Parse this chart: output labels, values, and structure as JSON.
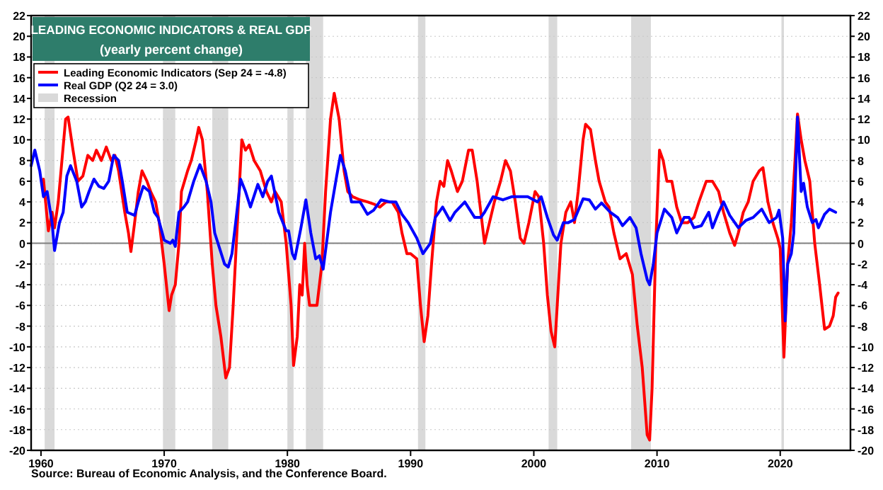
{
  "chart_data": {
    "type": "line",
    "title": "LEADING ECONOMIC INDICATORS & REAL GDP",
    "subtitle": "(yearly percent change)",
    "annotations": [
      "Source: Bureau of Economic Analysis, and the Conference Board."
    ],
    "xlim": [
      1959.2,
      2025.7
    ],
    "xticks": [
      1960,
      1970,
      1980,
      1990,
      2000,
      2010,
      2020
    ],
    "ylim": [
      -20,
      22
    ],
    "yticks": [
      -20,
      -18,
      -16,
      -14,
      -12,
      -10,
      -8,
      -6,
      -4,
      -2,
      0,
      2,
      4,
      6,
      8,
      10,
      12,
      14,
      16,
      18,
      20,
      22
    ],
    "y2lim": [
      -20,
      22
    ],
    "y2ticks": [
      -20,
      -18,
      -16,
      -14,
      -12,
      -10,
      -8,
      -6,
      -4,
      -2,
      0,
      2,
      4,
      6,
      8,
      10,
      12,
      14,
      16,
      18,
      20,
      22
    ],
    "grid": "y",
    "legend": "top left",
    "ref_lines": [
      {
        "axis": "y",
        "value": 0,
        "color": "#808080"
      }
    ],
    "bands": [
      {
        "axis": "x",
        "from": 1960.3,
        "to": 1961.1,
        "label": "Recession",
        "color": "#d9d9d9"
      },
      {
        "axis": "x",
        "from": 1969.9,
        "to": 1970.9,
        "color": "#d9d9d9"
      },
      {
        "axis": "x",
        "from": 1973.9,
        "to": 1975.2,
        "color": "#d9d9d9"
      },
      {
        "axis": "x",
        "from": 1980.0,
        "to": 1980.5,
        "color": "#d9d9d9"
      },
      {
        "axis": "x",
        "from": 1981.5,
        "to": 1982.9,
        "color": "#d9d9d9"
      },
      {
        "axis": "x",
        "from": 1990.6,
        "to": 1991.2,
        "color": "#d9d9d9"
      },
      {
        "axis": "x",
        "from": 2001.2,
        "to": 2001.9,
        "color": "#d9d9d9"
      },
      {
        "axis": "x",
        "from": 2007.9,
        "to": 2009.5,
        "color": "#d9d9d9"
      },
      {
        "axis": "x",
        "from": 2020.1,
        "to": 2020.3,
        "color": "#d9d9d9"
      }
    ],
    "series": [
      {
        "name": "Leading Economic Indicators (Sep 24 = -4.8)",
        "color": "#ff0000",
        "x": [
          1960.2,
          1960.6,
          1960.9,
          1961.1,
          1961.4,
          1961.7,
          1962.0,
          1962.2,
          1962.6,
          1963.0,
          1963.4,
          1963.8,
          1964.2,
          1964.5,
          1964.9,
          1965.3,
          1965.7,
          1966.0,
          1966.3,
          1966.8,
          1967.1,
          1967.3,
          1967.6,
          1967.9,
          1968.2,
          1968.6,
          1968.9,
          1969.3,
          1969.6,
          1970.0,
          1970.4,
          1970.6,
          1970.9,
          1971.2,
          1971.4,
          1971.9,
          1972.2,
          1972.6,
          1972.8,
          1973.1,
          1973.5,
          1973.9,
          1974.2,
          1974.6,
          1975.0,
          1975.3,
          1975.6,
          1975.9,
          1976.3,
          1976.6,
          1976.9,
          1977.3,
          1977.8,
          1978.3,
          1978.7,
          1979.0,
          1979.5,
          1979.9,
          1980.1,
          1980.3,
          1980.5,
          1980.8,
          1981.0,
          1981.2,
          1981.4,
          1981.6,
          1981.8,
          1982.1,
          1982.4,
          1982.8,
          1983.1,
          1983.5,
          1983.8,
          1984.2,
          1984.6,
          1984.9,
          1985.3,
          1985.9,
          1986.5,
          1987.0,
          1987.5,
          1988.0,
          1988.5,
          1989.0,
          1989.3,
          1989.7,
          1990.0,
          1990.5,
          1990.8,
          1991.1,
          1991.4,
          1991.7,
          1992.1,
          1992.4,
          1992.7,
          1993.0,
          1993.3,
          1993.8,
          1994.2,
          1994.7,
          1995.0,
          1995.4,
          1996.0,
          1996.4,
          1996.8,
          1997.3,
          1997.7,
          1998.1,
          1998.5,
          1998.9,
          1999.2,
          1999.6,
          2000.1,
          2000.4,
          2000.8,
          2001.1,
          2001.4,
          2001.7,
          2001.9,
          2002.2,
          2002.6,
          2003.0,
          2003.3,
          2003.6,
          2004.0,
          2004.2,
          2004.6,
          2005.0,
          2005.3,
          2005.8,
          2006.1,
          2006.5,
          2007.0,
          2007.5,
          2008.0,
          2008.4,
          2008.8,
          2009.2,
          2009.4,
          2009.6,
          2009.9,
          2010.2,
          2010.5,
          2010.8,
          2011.2,
          2011.6,
          2012.0,
          2012.5,
          2013.0,
          2013.4,
          2014.0,
          2014.5,
          2015.0,
          2015.4,
          2015.9,
          2016.3,
          2016.6,
          2017.0,
          2017.4,
          2017.8,
          2018.3,
          2018.6,
          2019.0,
          2019.4,
          2019.8,
          2020.0,
          2020.3,
          2020.6,
          2020.9,
          2021.2,
          2021.4,
          2021.7,
          2022.0,
          2022.4,
          2022.8,
          2023.2,
          2023.6,
          2024.0,
          2024.3,
          2024.5,
          2024.7
        ],
        "values": [
          6.2,
          1.2,
          3,
          1.5,
          4,
          8,
          12,
          12.2,
          9,
          6,
          6.5,
          8.5,
          8,
          9,
          8,
          9.3,
          8,
          8.5,
          7,
          3,
          1,
          -0.8,
          2,
          5,
          7,
          6,
          5,
          4,
          2,
          -2,
          -6.5,
          -5,
          -4,
          0,
          5,
          7,
          8,
          10,
          11.2,
          10,
          5,
          -2,
          -6,
          -9,
          -13,
          -12,
          -6,
          1,
          10,
          9,
          9.5,
          8,
          7,
          5,
          4,
          5,
          4,
          0,
          -3,
          -6,
          -11.8,
          -9,
          -4,
          -5,
          0,
          -4,
          -6,
          -6,
          -6,
          -2,
          5,
          12,
          14.5,
          12,
          7,
          5,
          4.5,
          4.2,
          4,
          3.8,
          3.5,
          4,
          4,
          3,
          1,
          -1,
          -1,
          -1.5,
          -6,
          -9.5,
          -7,
          -2,
          4,
          6,
          5.5,
          8,
          7,
          5,
          6,
          9,
          9,
          6,
          0,
          2,
          4,
          6,
          8,
          7,
          4,
          0.5,
          0,
          2,
          5,
          4.5,
          0,
          -5,
          -8.5,
          -10,
          -6,
          0,
          3,
          4,
          2,
          5,
          10,
          11.5,
          11,
          8,
          6,
          4,
          3.5,
          1,
          -1.5,
          -1,
          -3,
          -8,
          -12,
          -18.5,
          -19,
          -14,
          0,
          9,
          8,
          6,
          6,
          3.5,
          2,
          2,
          2.5,
          4,
          6,
          6,
          5,
          3,
          1,
          -0.2,
          1,
          3,
          4,
          6,
          7,
          7.3,
          4,
          2,
          0.5,
          -0.5,
          -11,
          -2,
          2,
          8,
          12.5,
          10,
          8,
          6,
          0,
          -4,
          -8.3,
          -8,
          -7,
          -5.2,
          -4.8
        ]
      },
      {
        "name": "Real GDP (Q2 24 = 3.0)",
        "color": "#0000ff",
        "x": [
          1959.2,
          1959.5,
          1959.9,
          1960.2,
          1960.5,
          1960.9,
          1961.1,
          1961.5,
          1961.8,
          1962.1,
          1962.4,
          1962.9,
          1963.3,
          1963.6,
          1963.9,
          1964.3,
          1964.7,
          1965.1,
          1965.5,
          1965.9,
          1966.3,
          1966.6,
          1967.0,
          1967.6,
          1967.9,
          1968.3,
          1968.8,
          1969.2,
          1969.5,
          1970.0,
          1970.5,
          1970.7,
          1970.9,
          1971.2,
          1971.6,
          1971.9,
          1972.4,
          1972.9,
          1973.4,
          1973.8,
          1974.1,
          1974.5,
          1974.9,
          1975.2,
          1975.5,
          1975.8,
          1976.2,
          1976.6,
          1977.0,
          1977.6,
          1978.0,
          1978.4,
          1978.7,
          1979.3,
          1979.9,
          1980.1,
          1980.4,
          1980.6,
          1981.1,
          1981.5,
          1981.9,
          1982.3,
          1982.6,
          1982.9,
          1983.5,
          1984.0,
          1984.3,
          1984.7,
          1985.2,
          1985.9,
          1986.5,
          1987.0,
          1987.6,
          1988.3,
          1988.8,
          1989.3,
          1989.8,
          1990.5,
          1991.0,
          1991.6,
          1992.0,
          1992.6,
          1993.2,
          1993.6,
          1994.4,
          1995.2,
          1995.7,
          1996.0,
          1996.7,
          1997.5,
          1998.2,
          1999.0,
          1999.5,
          2000.3,
          2000.6,
          2001.1,
          2001.6,
          2001.9,
          2002.4,
          2002.8,
          2003.3,
          2004.0,
          2004.5,
          2005.0,
          2005.5,
          2006.2,
          2006.8,
          2007.2,
          2007.8,
          2008.3,
          2008.7,
          2009.2,
          2009.4,
          2009.7,
          2010.0,
          2010.6,
          2011.2,
          2011.6,
          2012.2,
          2012.6,
          2013.0,
          2013.6,
          2014.2,
          2014.5,
          2015.0,
          2015.4,
          2015.9,
          2016.6,
          2017.2,
          2017.8,
          2018.5,
          2019.1,
          2019.7,
          2019.9,
          2020.2,
          2020.4,
          2020.6,
          2020.9,
          2021.1,
          2021.4,
          2021.7,
          2021.9,
          2022.2,
          2022.6,
          2022.9,
          2023.1,
          2023.6,
          2024.0,
          2024.5
        ],
        "values": [
          7.5,
          9,
          7,
          4.5,
          5,
          2,
          -0.7,
          2,
          3,
          6.5,
          7.5,
          6,
          3.5,
          4,
          5,
          6.2,
          5.5,
          5.3,
          6,
          8.5,
          8,
          6,
          3,
          2.7,
          4,
          5.5,
          5,
          3,
          2.5,
          0.3,
          0,
          0.3,
          -0.3,
          3,
          3.5,
          4,
          6,
          7.6,
          6,
          4,
          1,
          -0.5,
          -2,
          -2.3,
          -1,
          2,
          6.2,
          5,
          3.5,
          5.7,
          4.5,
          6,
          6.5,
          3,
          1.2,
          1.2,
          -1,
          -1.5,
          1.5,
          4.2,
          1,
          -1.5,
          -1.2,
          -2.5,
          3,
          6.5,
          8.5,
          7,
          4,
          4,
          2.8,
          3.2,
          4.2,
          4,
          4,
          2.8,
          2,
          0.5,
          -1,
          0,
          2.5,
          3.5,
          2.2,
          3,
          4,
          2.5,
          2.5,
          3,
          4.5,
          4.2,
          4.5,
          4.5,
          4.5,
          4,
          4.5,
          2.5,
          0.8,
          0.3,
          2,
          2,
          2.3,
          4.3,
          4.2,
          3.3,
          3.9,
          3,
          2.5,
          1.7,
          2.5,
          1.5,
          -1,
          -3.5,
          -4,
          -2,
          1,
          3.3,
          2.5,
          1,
          2.5,
          2.5,
          1.5,
          1.7,
          3,
          1.5,
          3,
          4,
          2.7,
          1.5,
          2.2,
          2.5,
          3.3,
          2,
          2.5,
          3.2,
          0.5,
          -7.5,
          -2,
          -1,
          1,
          12.2,
          5,
          5.8,
          3.5,
          2,
          2.3,
          1.5,
          2.8,
          3.3,
          3
        ]
      }
    ]
  }
}
